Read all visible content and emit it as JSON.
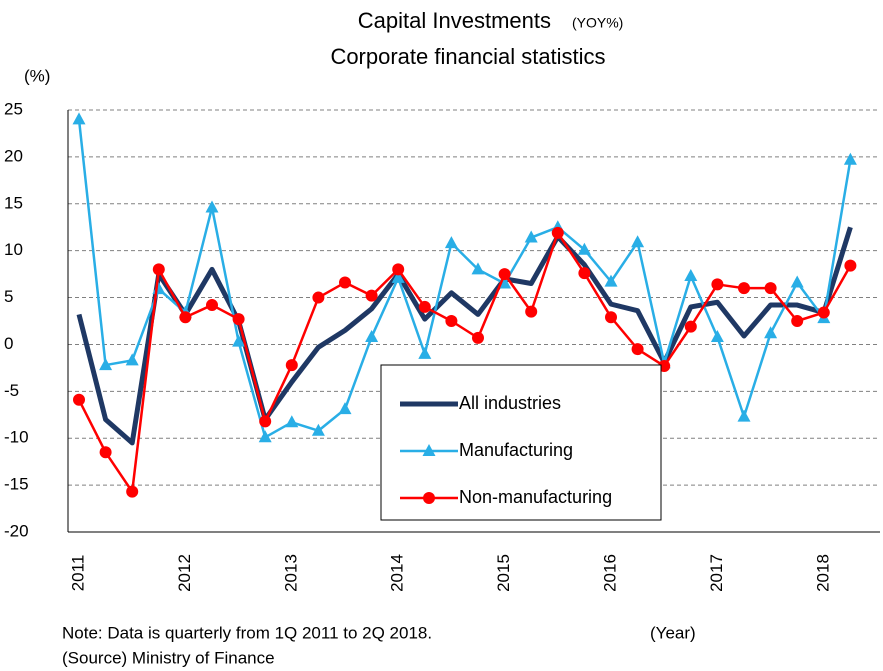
{
  "chart_data": {
    "type": "line",
    "title": "Capital Investments",
    "title_note": "(YOY%)",
    "subtitle": "Corporate financial statistics",
    "ylabel": "(%)",
    "xlabel": "(Year)",
    "note": "Note: Data is quarterly from 1Q 2011 to 2Q 2018.",
    "source": "(Source) Ministry of Finance",
    "categories": [
      "2011",
      null,
      null,
      null,
      "2012",
      null,
      null,
      null,
      "2013",
      null,
      null,
      null,
      "2014",
      null,
      null,
      null,
      "2015",
      null,
      null,
      null,
      "2016",
      null,
      null,
      null,
      "2017",
      null,
      null,
      null,
      "2018",
      null
    ],
    "series": [
      {
        "name": "All industries",
        "color": "#1f3864",
        "marker": "none",
        "values": [
          3.2,
          -8,
          -10.5,
          7.5,
          3.2,
          8,
          2.5,
          -8,
          -4,
          -0.3,
          1.5,
          3.8,
          7.5,
          2.7,
          5.5,
          3.2,
          7.0,
          6.5,
          11.5,
          8.5,
          4.3,
          3.6,
          -1.9,
          4.0,
          4.5,
          0.9,
          4.2,
          4.2,
          3.4,
          12.5
        ]
      },
      {
        "name": "Manufacturing",
        "color": "#29aee6",
        "marker": "triangle",
        "values": [
          24,
          -2.2,
          -1.7,
          5.9,
          3.4,
          14.6,
          0.3,
          -9.9,
          -8.3,
          -9.2,
          -6.9,
          0.8,
          7.1,
          -1.0,
          10.8,
          8.0,
          6.5,
          11.4,
          12.5,
          10.1,
          6.7,
          10.9,
          -2.0,
          7.3,
          0.8,
          -7.7,
          1.2,
          6.6,
          2.8,
          19.7
        ]
      },
      {
        "name": "Non-manufacturing",
        "color": "#ff0000",
        "marker": "circle",
        "values": [
          -5.9,
          -11.5,
          -15.7,
          8.0,
          2.9,
          4.2,
          2.7,
          -8.2,
          -2.2,
          5.0,
          6.6,
          5.2,
          8.0,
          4.0,
          2.5,
          0.7,
          7.5,
          3.5,
          11.9,
          7.6,
          2.9,
          -0.5,
          -2.3,
          1.9,
          6.4,
          6.0,
          6.0,
          2.5,
          3.4,
          8.4
        ]
      }
    ],
    "ylim": [
      -20,
      25
    ],
    "yticks": [
      -20,
      -15,
      -10,
      -5,
      0,
      5,
      10,
      15,
      20,
      25
    ],
    "grid": true
  }
}
